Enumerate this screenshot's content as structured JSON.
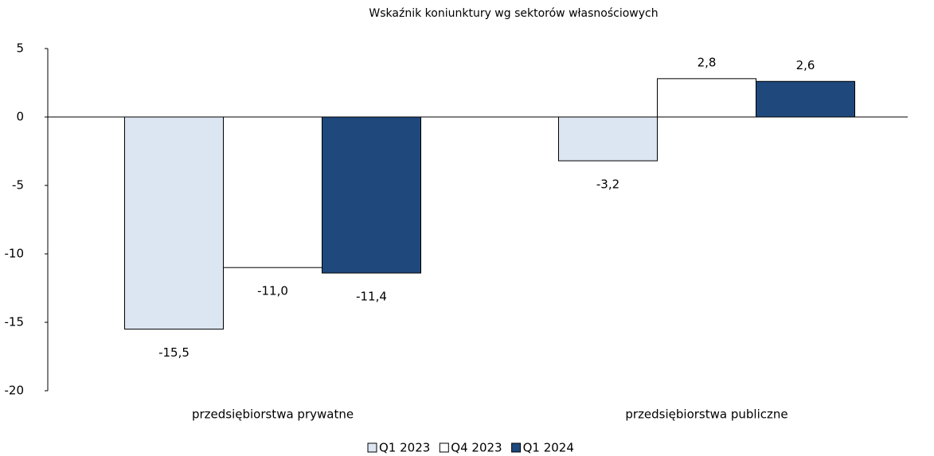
{
  "chart_data": {
    "type": "bar",
    "title": "Wskaźnik koniunktury wg sektorów własnościowych",
    "categories": [
      "przedsiębiorstwa prywatne",
      "przedsiębiorstwa publiczne"
    ],
    "series": [
      {
        "name": "Q1 2023",
        "color": "#dce6f2",
        "values": [
          -15.5,
          -3.2
        ],
        "value_labels": [
          "-15,5",
          "-3,2"
        ]
      },
      {
        "name": "Q4 2023",
        "color": "#ffffff",
        "values": [
          -11.0,
          2.8
        ],
        "value_labels": [
          "-11,0",
          "2,8"
        ]
      },
      {
        "name": "Q1 2024",
        "color": "#1f497d",
        "values": [
          -11.4,
          2.6
        ],
        "value_labels": [
          "-11,4",
          "2,6"
        ]
      }
    ],
    "ylim": [
      -20,
      5
    ],
    "yticks": [
      5,
      0,
      -5,
      -10,
      -15,
      -20
    ],
    "legend": "bottom"
  }
}
